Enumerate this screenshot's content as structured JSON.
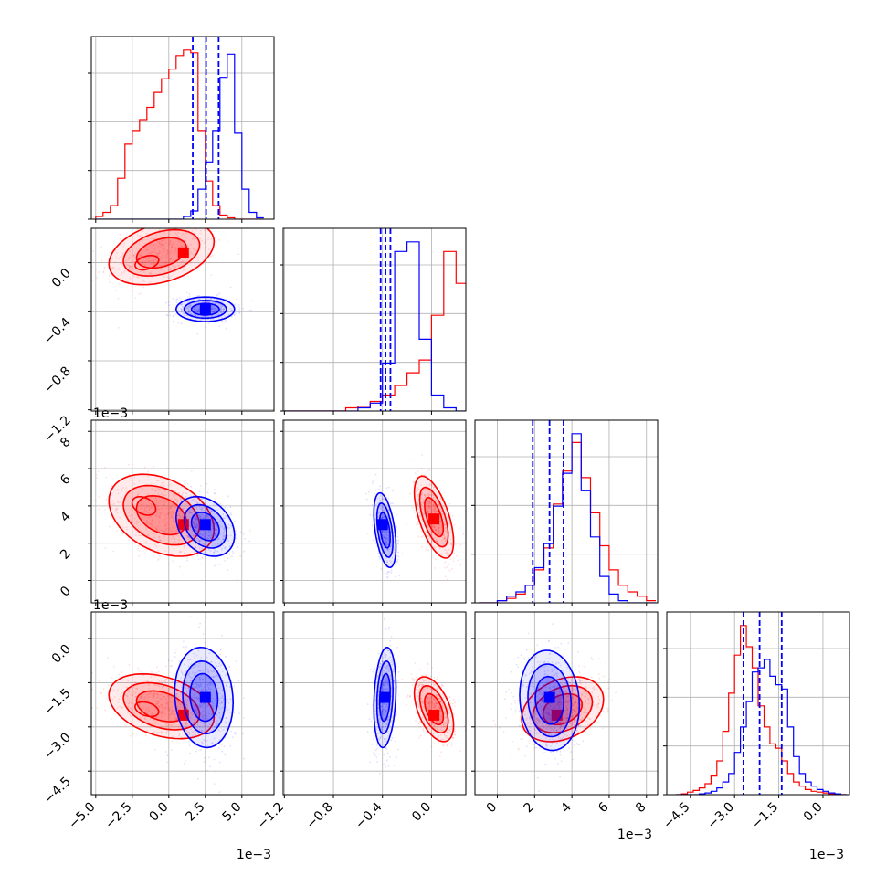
{
  "figure": {
    "background": "#ffffff",
    "grid": true,
    "offset_label": "1e−3"
  },
  "chart_data": {
    "type": "corner",
    "title": "",
    "series": [
      {
        "color": "#ff0000"
      },
      {
        "color": "#0000ff"
      }
    ],
    "quantile_color": "#0000ff",
    "parameters": [
      {
        "range": [
          -5.3,
          7.2
        ],
        "ticks": [
          -5.0,
          -2.5,
          0.0,
          2.5,
          5.0
        ],
        "tick_labels": [
          "−5.0",
          "−2.5",
          "0.0",
          "2.5",
          "5.0"
        ],
        "offset": "1e−3"
      },
      {
        "range": [
          -1.21,
          0.28
        ],
        "ticks": [
          -1.2,
          -0.8,
          -0.4,
          0.0
        ],
        "tick_labels": [
          "−1.2",
          "−0.8",
          "−0.4",
          "0.0"
        ],
        "offset": ""
      },
      {
        "range": [
          -1.2,
          8.6
        ],
        "ticks": [
          0,
          2,
          4,
          6,
          8
        ],
        "tick_labels": [
          "0",
          "2",
          "4",
          "6",
          "8"
        ],
        "offset": "1e−3"
      },
      {
        "range": [
          -5.3,
          0.9
        ],
        "ticks": [
          -4.5,
          -3.0,
          -1.5,
          0.0
        ],
        "tick_labels": [
          "−4.5",
          "−3.0",
          "−1.5",
          "0.0"
        ],
        "offset": "1e−3"
      }
    ],
    "histograms": [
      {
        "edges": [
          -5.0,
          -4.5,
          -4.0,
          -3.5,
          -3.0,
          -2.5,
          -2.0,
          -1.5,
          -1.0,
          -0.5,
          0.0,
          0.5,
          1.0,
          1.5,
          2.0,
          2.5,
          3.0,
          3.5,
          4.0,
          4.5,
          5.0,
          5.5,
          6.0,
          6.5
        ],
        "red": [
          2,
          5,
          10,
          30,
          55,
          65,
          73,
          82,
          93,
          103,
          110,
          120,
          124,
          122,
          65,
          28,
          10,
          3,
          1,
          0,
          0,
          0,
          0
        ],
        "blue": [
          0,
          0,
          0,
          0,
          0,
          0,
          0,
          0,
          0,
          0,
          0,
          0,
          2,
          6,
          22,
          42,
          65,
          104,
          121,
          63,
          22,
          5,
          1
        ],
        "quantiles": [
          1.64,
          2.55,
          3.41
        ]
      },
      {
        "edges": [
          -1.2,
          -1.1,
          -1.0,
          -0.9,
          -0.8,
          -0.7,
          -0.6,
          -0.5,
          -0.4,
          -0.3,
          -0.2,
          -0.1,
          0.0,
          0.1,
          0.2
        ],
        "red": [
          0,
          0,
          0,
          0,
          0,
          2,
          3,
          6,
          10,
          16,
          24,
          32,
          60,
          100,
          80
        ],
        "blue": [
          0,
          0,
          0,
          0,
          0,
          0,
          2,
          5,
          30,
          100,
          106,
          45,
          10,
          2,
          0
        ],
        "quantiles": [
          -0.415,
          -0.375,
          -0.335
        ]
      },
      {
        "edges": [
          -1.0,
          -0.5,
          0.0,
          0.5,
          1.0,
          1.5,
          2.0,
          2.5,
          3.0,
          3.5,
          4.0,
          4.5,
          5.0,
          5.5,
          6.0,
          6.5,
          7.0,
          7.5,
          8.0
        ],
        "red": [
          0,
          0,
          1,
          2,
          4,
          8,
          15,
          25,
          45,
          60,
          73,
          57,
          41,
          26,
          15,
          8,
          5,
          3,
          1
        ],
        "blue": [
          0,
          0,
          1,
          3,
          5,
          8,
          16,
          27,
          44,
          59,
          77,
          51,
          30,
          12,
          4,
          1,
          0,
          0,
          0
        ],
        "quantiles": [
          1.9,
          2.8,
          3.55
        ]
      },
      {
        "edges": [
          -5.0,
          -4.8,
          -4.6,
          -4.4,
          -4.2,
          -4.0,
          -3.8,
          -3.6,
          -3.4,
          -3.2,
          -3.0,
          -2.8,
          -2.6,
          -2.4,
          -2.2,
          -2.0,
          -1.8,
          -1.6,
          -1.4,
          -1.2,
          -1.0,
          -0.8,
          -0.6,
          -0.4,
          -0.2,
          0.0,
          0.2,
          0.4,
          0.6
        ],
        "red": [
          0,
          1,
          3,
          5,
          8,
          13,
          22,
          40,
          75,
          120,
          165,
          200,
          175,
          150,
          105,
          80,
          60,
          55,
          40,
          25,
          15,
          10,
          6,
          4,
          3,
          2,
          1,
          1,
          0
        ],
        "blue": [
          0,
          0,
          0,
          0,
          1,
          2,
          4,
          8,
          15,
          25,
          50,
          80,
          110,
          145,
          150,
          160,
          140,
          130,
          125,
          80,
          45,
          25,
          15,
          10,
          6,
          4,
          2,
          1,
          0
        ],
        "quantiles": [
          -2.7,
          -2.15,
          -1.4
        ]
      }
    ],
    "pairs": [
      {
        "row": 1,
        "col": 0,
        "red": {
          "mean": [
            -0.5,
            0.08
          ],
          "sd": [
            1.8,
            0.13
          ],
          "rho": 0.35,
          "peak": [
            1.0,
            0.08
          ],
          "secondary": [
            -1.5,
            0.0
          ]
        },
        "blue": {
          "mean": [
            2.5,
            -0.38
          ],
          "sd": [
            1.0,
            0.05
          ],
          "rho": 0.0,
          "peak": [
            2.5,
            -0.38
          ]
        }
      },
      {
        "row": 2,
        "col": 0,
        "red": {
          "mean": [
            -0.5,
            3.5
          ],
          "sd": [
            1.8,
            1.1
          ],
          "rho": -0.35,
          "peak": [
            1.0,
            3.0
          ],
          "secondary": [
            -1.7,
            4.0
          ]
        },
        "blue": {
          "mean": [
            2.5,
            2.9
          ],
          "sd": [
            1.0,
            0.8
          ],
          "rho": -0.3,
          "peak": [
            2.5,
            3.0
          ]
        }
      },
      {
        "row": 2,
        "col": 1,
        "red": {
          "mean": [
            0.02,
            3.4
          ],
          "sd": [
            0.08,
            1.1
          ],
          "rho": -0.6,
          "peak": [
            0.02,
            3.3
          ]
        },
        "blue": {
          "mean": [
            -0.38,
            2.7
          ],
          "sd": [
            0.045,
            1.0
          ],
          "rho": -0.45,
          "peak": [
            -0.4,
            3.0
          ]
        }
      },
      {
        "row": 3,
        "col": 0,
        "red": {
          "mean": [
            -0.5,
            -2.3
          ],
          "sd": [
            1.8,
            0.55
          ],
          "rho": -0.35,
          "peak": [
            1.0,
            -2.6
          ],
          "secondary": [
            -1.5,
            -2.4
          ]
        },
        "blue": {
          "mean": [
            2.4,
            -2.0
          ],
          "sd": [
            1.0,
            0.85
          ],
          "rho": -0.1,
          "peak": [
            2.5,
            -2.0
          ]
        }
      },
      {
        "row": 3,
        "col": 1,
        "red": {
          "mean": [
            0.02,
            -2.4
          ],
          "sd": [
            0.08,
            0.55
          ],
          "rho": -0.5,
          "peak": [
            0.02,
            -2.6
          ]
        },
        "blue": {
          "mean": [
            -0.38,
            -2.0
          ],
          "sd": [
            0.045,
            0.85
          ],
          "rho": 0.2,
          "peak": [
            -0.38,
            -2.0
          ]
        }
      },
      {
        "row": 3,
        "col": 2,
        "red": {
          "mean": [
            3.5,
            -2.4
          ],
          "sd": [
            1.1,
            0.55
          ],
          "rho": 0.3,
          "peak": [
            3.2,
            -2.6
          ]
        },
        "blue": {
          "mean": [
            2.8,
            -2.1
          ],
          "sd": [
            0.8,
            0.85
          ],
          "rho": -0.1,
          "peak": [
            2.8,
            -2.0
          ]
        }
      }
    ]
  }
}
